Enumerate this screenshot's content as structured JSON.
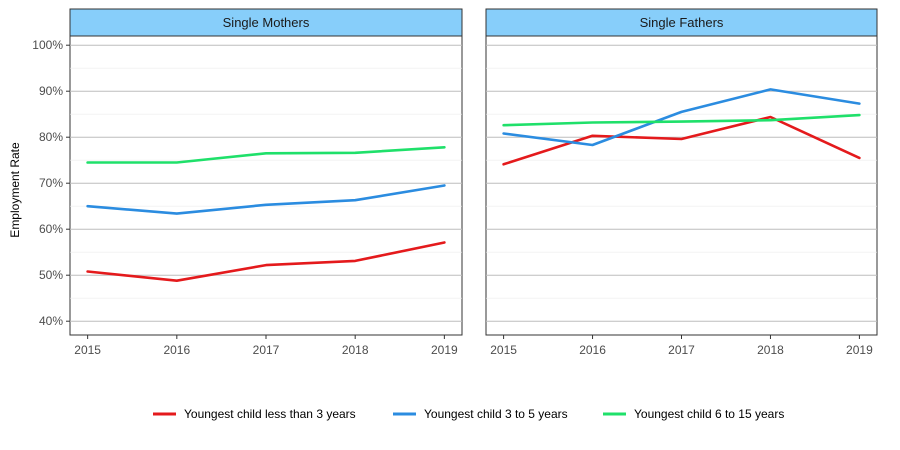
{
  "chart_data": {
    "type": "line",
    "ylabel": "Employment Rate",
    "ylim": [
      0.37,
      1.02
    ],
    "yticks": [
      0.4,
      0.5,
      0.6,
      0.7,
      0.8,
      0.9,
      1.0
    ],
    "ytick_labels": [
      "40%",
      "50%",
      "60%",
      "70%",
      "80%",
      "90%",
      "100%"
    ],
    "x": [
      2015,
      2016,
      2017,
      2018,
      2019
    ],
    "x_labels": [
      "2015",
      "2016",
      "2017",
      "2018",
      "2019"
    ],
    "legend_position": "bottom",
    "grid": true,
    "series_meta": [
      {
        "name": "Youngest child less than 3 years",
        "color": "#e41a1c"
      },
      {
        "name": "Youngest child 3 to 5 years",
        "color": "#2b8ce0"
      },
      {
        "name": "Youngest child 6 to 15 years",
        "color": "#1fe06a"
      }
    ],
    "panels": [
      {
        "title": "Single Mothers",
        "series": [
          {
            "name": "Youngest child less than 3 years",
            "values": [
              0.508,
              0.488,
              0.522,
              0.531,
              0.571
            ]
          },
          {
            "name": "Youngest child 3 to 5 years",
            "values": [
              0.65,
              0.634,
              0.653,
              0.663,
              0.695
            ]
          },
          {
            "name": "Youngest child 6 to 15 years",
            "values": [
              0.745,
              0.745,
              0.765,
              0.766,
              0.778
            ]
          }
        ]
      },
      {
        "title": "Single Fathers",
        "series": [
          {
            "name": "Youngest child less than 3 years",
            "values": [
              0.741,
              0.803,
              0.796,
              0.844,
              0.755
            ]
          },
          {
            "name": "Youngest child 3 to 5 years",
            "values": [
              0.808,
              0.783,
              0.855,
              0.904,
              0.873
            ]
          },
          {
            "name": "Youngest child 6 to 15 years",
            "values": [
              0.826,
              0.832,
              0.834,
              0.837,
              0.848
            ]
          }
        ]
      }
    ]
  }
}
